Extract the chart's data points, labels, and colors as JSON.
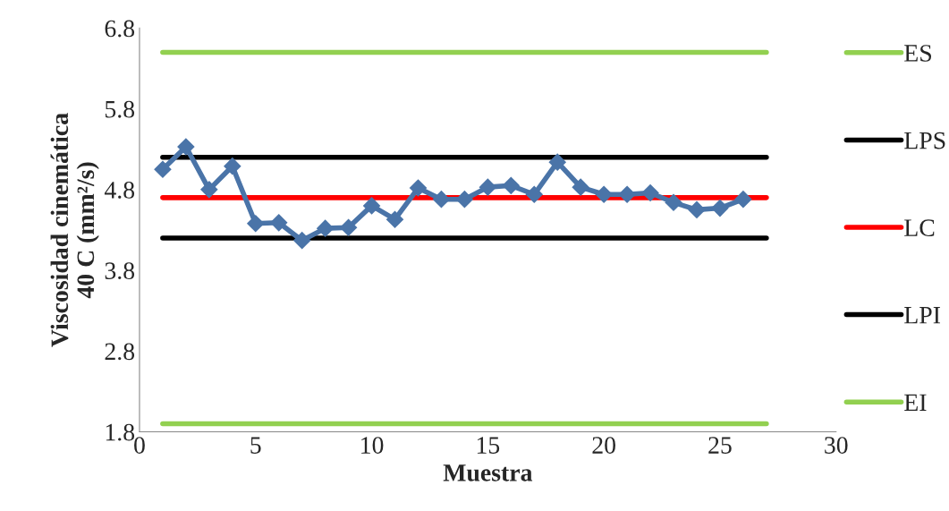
{
  "chart_data": {
    "type": "line",
    "xlabel": "Muestra",
    "ylabel": "Viscosidad cinemática\n40 C (mm²/s)",
    "xlim": [
      0,
      30
    ],
    "xticks": [
      0,
      5,
      10,
      15,
      20,
      25,
      30
    ],
    "ylim": [
      1.8,
      6.8
    ],
    "yticks": [
      1.8,
      2.8,
      3.8,
      4.8,
      5.8,
      6.8
    ],
    "grid": false,
    "legend": "right",
    "series": [
      {
        "color": "#4a74a8",
        "marker": "diamond",
        "x": [
          1,
          2,
          3,
          4,
          5,
          6,
          7,
          8,
          9,
          10,
          11,
          12,
          13,
          14,
          15,
          16,
          17,
          18,
          19,
          20,
          21,
          22,
          23,
          24,
          25,
          26
        ],
        "values": [
          5.05,
          5.33,
          4.8,
          5.09,
          4.38,
          4.39,
          4.17,
          4.32,
          4.33,
          4.6,
          4.43,
          4.82,
          4.68,
          4.68,
          4.83,
          4.85,
          4.74,
          5.14,
          4.83,
          4.74,
          4.74,
          4.76,
          4.64,
          4.55,
          4.57,
          4.68
        ]
      },
      {
        "name": "ES",
        "color": "#92d050",
        "marker": "none",
        "x": [
          1,
          27
        ],
        "values": [
          6.5,
          6.5
        ]
      },
      {
        "name": "LPS",
        "color": "#000000",
        "marker": "none",
        "x": [
          1,
          27
        ],
        "values": [
          5.2,
          5.2
        ]
      },
      {
        "name": "LC",
        "color": "#ff0000",
        "marker": "none",
        "x": [
          1,
          27
        ],
        "values": [
          4.7,
          4.7
        ]
      },
      {
        "name": "LPI",
        "color": "#000000",
        "marker": "none",
        "x": [
          1,
          27
        ],
        "values": [
          4.2,
          4.2
        ]
      },
      {
        "name": "EI",
        "color": "#92d050",
        "marker": "none",
        "x": [
          1,
          27
        ],
        "values": [
          1.9,
          1.9
        ]
      }
    ]
  }
}
